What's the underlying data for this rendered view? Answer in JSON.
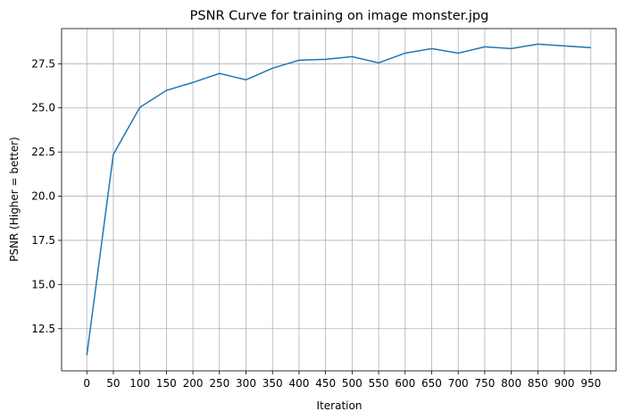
{
  "chart_data": {
    "type": "line",
    "title": "PSNR Curve for training on image monster.jpg",
    "x_label": "Iteration",
    "y_label": "PSNR (Higher = better)",
    "x": [
      0,
      50,
      100,
      150,
      200,
      250,
      300,
      350,
      400,
      450,
      500,
      550,
      600,
      650,
      700,
      750,
      800,
      850,
      900,
      950
    ],
    "series": [
      {
        "color": "#1f77b4",
        "values": [
          10.99,
          22.37,
          25.03,
          25.99,
          26.44,
          26.95,
          26.59,
          27.25,
          27.7,
          27.75,
          27.9,
          27.55,
          28.1,
          28.36,
          28.1,
          28.46,
          28.36,
          28.61,
          28.51,
          28.41
        ]
      }
    ],
    "xlim": [
      -47.5,
      997.5
    ],
    "xticks": [
      0,
      50,
      100,
      150,
      200,
      250,
      300,
      350,
      400,
      450,
      500,
      550,
      600,
      650,
      700,
      750,
      800,
      850,
      900,
      950
    ],
    "ylim": [
      10.11,
      29.49
    ],
    "yticks": [
      12.5,
      {
        "value": 15,
        "label": "15.0"
      },
      17.5,
      {
        "value": 20,
        "label": "20.0"
      },
      22.5,
      {
        "value": 25,
        "label": "25.0"
      },
      27.5
    ],
    "grid": true
  }
}
